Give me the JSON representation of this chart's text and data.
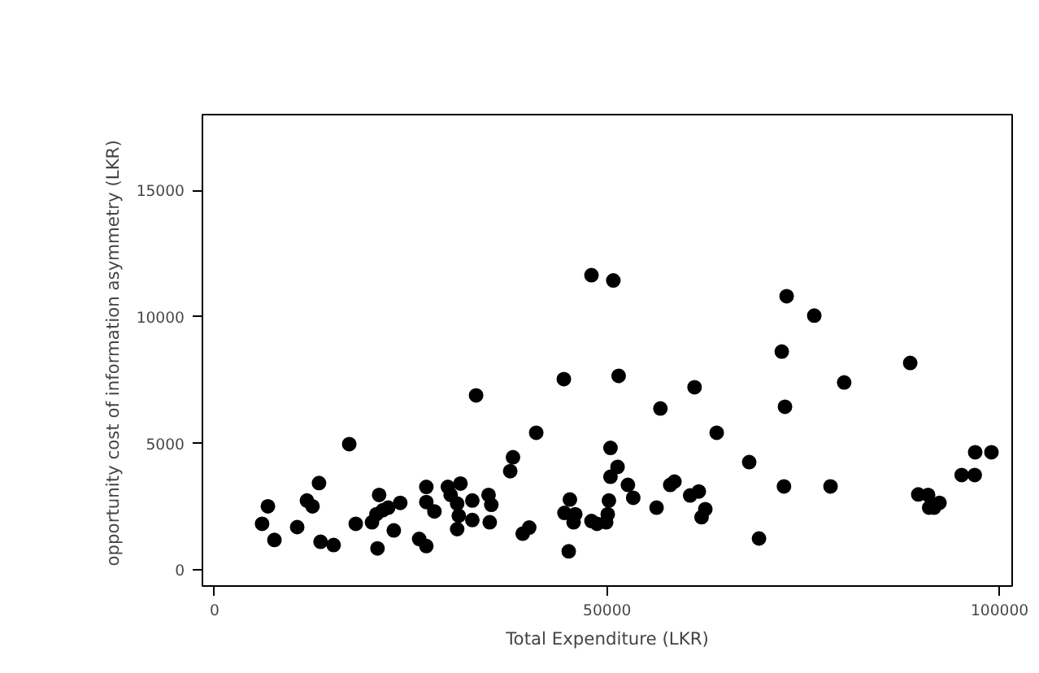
{
  "chart_data": {
    "type": "scatter",
    "xlabel": "Total Expenditure (LKR)",
    "ylabel": "opportunity cost of information asymmetry  (LKR)",
    "x": [
      6050,
      6790,
      7620,
      10520,
      11760,
      12470,
      13300,
      13500,
      15160,
      17150,
      17980,
      20050,
      20750,
      20960,
      20610,
      21440,
      22120,
      22830,
      23650,
      26060,
      26970,
      26970,
      26970,
      28000,
      29720,
      30070,
      31320,
      30900,
      31110,
      30900,
      32830,
      32830,
      33310,
      34900,
      35250,
      35050,
      37660,
      38010,
      39250,
      40080,
      40970,
      44490,
      45110,
      45260,
      44570,
      45940,
      45730,
      48010,
      48710,
      49880,
      50080,
      50230,
      50430,
      50430,
      51330,
      48010,
      50790,
      51470,
      52650,
      53330,
      56300,
      56790,
      58040,
      58580,
      60580,
      61140,
      61680,
      62030,
      62510,
      63960,
      68100,
      69350,
      72250,
      72530,
      72660,
      72870,
      76390,
      78460,
      80200,
      88610,
      89640,
      90890,
      91030,
      91650,
      92340,
      95170,
      96830,
      96890,
      98960
    ],
    "values": [
      1820,
      2510,
      1180,
      1690,
      2740,
      2510,
      3430,
      1110,
      980,
      4970,
      1820,
      1880,
      850,
      2960,
      2200,
      2360,
      2460,
      1560,
      2650,
      1220,
      3280,
      2680,
      940,
      2310,
      3280,
      2960,
      3410,
      2620,
      2140,
      1610,
      2740,
      1970,
      6900,
      2960,
      2570,
      1880,
      3900,
      4450,
      1430,
      1670,
      5420,
      7540,
      730,
      2780,
      2250,
      2200,
      1880,
      1930,
      1820,
      1880,
      2200,
      2740,
      4820,
      3680,
      4070,
      11650,
      11440,
      7670,
      3360,
      2850,
      2460,
      6380,
      3360,
      3490,
      2940,
      7220,
      3100,
      2080,
      2400,
      5420,
      4260,
      1240,
      8630,
      3300,
      6450,
      10820,
      10050,
      3300,
      7410,
      8180,
      2980,
      2960,
      2460,
      2460,
      2650,
      3750,
      3750,
      4650,
      4650
    ],
    "color": "#000000",
    "marker": "circle",
    "xlim": [
      -1550,
      101600
    ],
    "ylim": [
      -640,
      18000
    ],
    "xticks": [
      0,
      50000,
      100000
    ],
    "yticks": [
      0,
      5000,
      10000,
      15000
    ],
    "grid": false
  }
}
